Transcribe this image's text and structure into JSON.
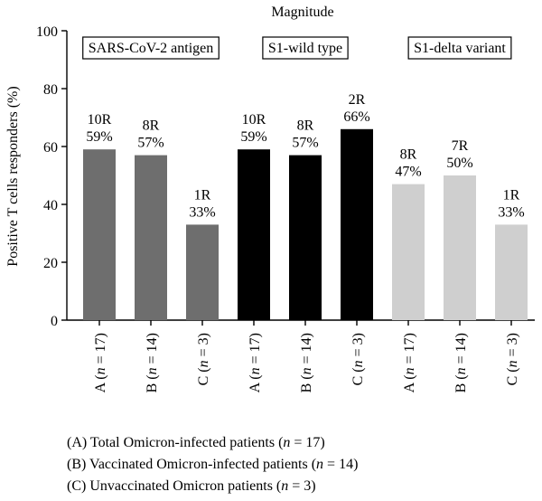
{
  "chart_data": {
    "type": "bar",
    "title": "Magnitude",
    "ylabel": "Positive T cells responders (%)",
    "ylim": [
      0,
      100
    ],
    "yticks": [
      0,
      20,
      40,
      60,
      80,
      100
    ],
    "grid": false,
    "groups": [
      {
        "name": "SARS-CoV-2 antigen",
        "color": "#6e6e6e",
        "bars": [
          {
            "category": "A (n = 17)",
            "n": "17",
            "value": 59,
            "responders": "10R",
            "pct_label": "59%"
          },
          {
            "category": "B (n = 14)",
            "n": "14",
            "value": 57,
            "responders": "8R",
            "pct_label": "57%"
          },
          {
            "category": "C (n = 3)",
            "n": "3",
            "value": 33,
            "responders": "1R",
            "pct_label": "33%"
          }
        ]
      },
      {
        "name": "S1-wild type",
        "color": "#000000",
        "bars": [
          {
            "category": "A (n = 17)",
            "n": "17",
            "value": 59,
            "responders": "10R",
            "pct_label": "59%"
          },
          {
            "category": "B (n = 14)",
            "n": "14",
            "value": 57,
            "responders": "8R",
            "pct_label": "57%"
          },
          {
            "category": "C (n = 3)",
            "n": "3",
            "value": 66,
            "responders": "2R",
            "pct_label": "66%"
          }
        ]
      },
      {
        "name": "S1-delta variant",
        "color": "#cfcfcf",
        "bars": [
          {
            "category": "A (n = 17)",
            "n": "17",
            "value": 47,
            "responders": "8R",
            "pct_label": "47%"
          },
          {
            "category": "B (n = 14)",
            "n": "14",
            "value": 50,
            "responders": "7R",
            "pct_label": "50%"
          },
          {
            "category": "C (n = 3)",
            "n": "3",
            "value": 33,
            "responders": "1R",
            "pct_label": "33%"
          }
        ]
      }
    ]
  },
  "legend": [
    {
      "prefix": "(A) Total Omicron-infected patients (",
      "var": "n",
      "suffix": " = 17)"
    },
    {
      "prefix": "(B) Vaccinated Omicron-infected patients (",
      "var": "n",
      "suffix": " = 14)"
    },
    {
      "prefix": "(C) Unvaccinated Omicron patients (",
      "var": "n",
      "suffix": " = 3)"
    }
  ]
}
